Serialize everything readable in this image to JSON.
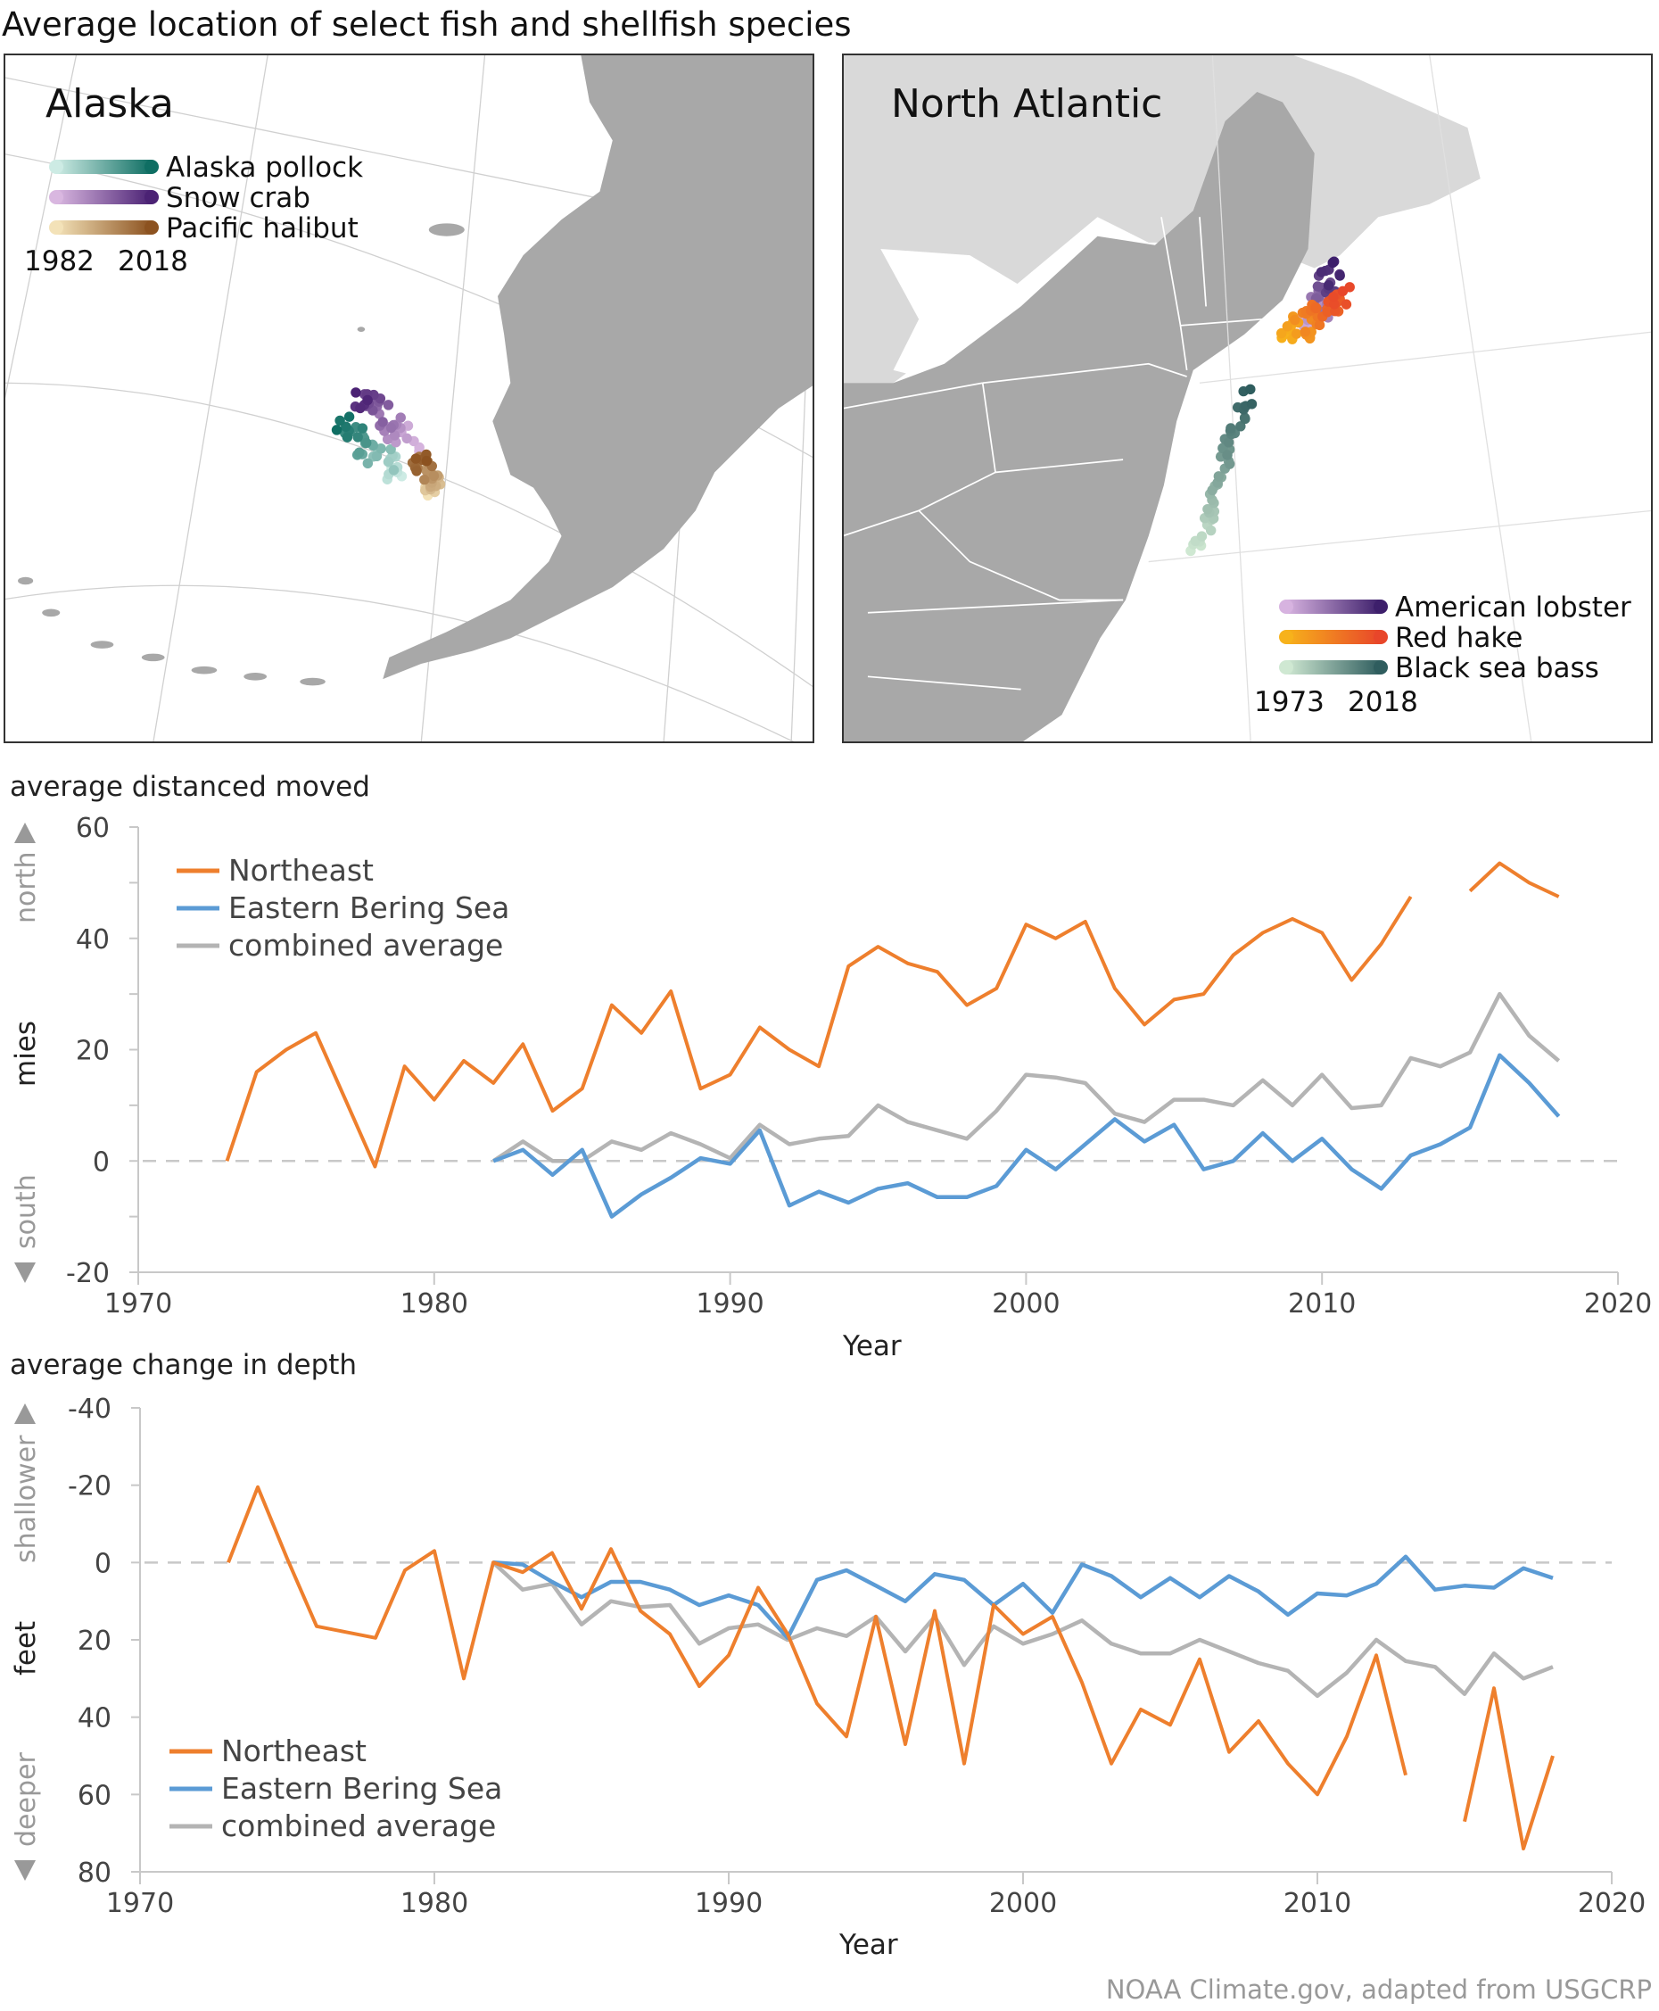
{
  "title": "Average location of select fish and shellfish species",
  "maps": {
    "alaska": {
      "title": "Alaska",
      "legend": [
        {
          "label": "Alaska pollock",
          "from": "#cdebe4",
          "to": "#0f6e63"
        },
        {
          "label": "Snow crab",
          "from": "#d9b7e0",
          "to": "#4b2274"
        },
        {
          "label": "Pacific halibut",
          "from": "#f3e2b8",
          "to": "#8c5220"
        }
      ],
      "start_year": "1982",
      "end_year": "2018"
    },
    "north_atlantic": {
      "title": "North Atlantic",
      "legend": [
        {
          "label": "American lobster",
          "from": "#d7b3e0",
          "to": "#3d1f6b"
        },
        {
          "label": "Red hake",
          "from": "#f7b21b",
          "to": "#e8462a"
        },
        {
          "label": "Black sea bass",
          "from": "#cfe8d2",
          "to": "#2f5d5e"
        }
      ],
      "start_year": "1973",
      "end_year": "2018"
    }
  },
  "colors": {
    "northeast": "#ee7f2d",
    "bering": "#5b9bd5",
    "combined": "#b4b4b4",
    "land": "#a8a8a8",
    "land_light": "#d9d9d9"
  },
  "chart_data": [
    {
      "type": "line",
      "title": "average distanced moved",
      "xlabel": "Year",
      "ylabel": "mies",
      "direction_labels": {
        "positive": "north",
        "negative": "south"
      },
      "xlim": [
        1970,
        2020
      ],
      "ylim": [
        -20,
        60
      ],
      "x_ticks": [
        1970,
        1980,
        1990,
        2000,
        2010,
        2020
      ],
      "y_ticks": [
        -20,
        0,
        20,
        40,
        60
      ],
      "reference_line": 0,
      "legend_position": "top-left",
      "series": [
        {
          "name": "Northeast",
          "key": "northeast",
          "x_start": 1973,
          "values": [
            0,
            16,
            20,
            23,
            11,
            -1,
            17,
            11,
            18,
            14,
            21,
            9,
            13,
            28,
            23,
            30.5,
            13,
            15.5,
            24,
            20,
            17,
            35,
            38.5,
            35.5,
            34,
            28,
            31,
            42.5,
            40,
            43,
            31,
            24.5,
            29,
            30,
            37,
            41,
            43.5,
            41,
            32.5,
            39,
            47.5,
            null,
            48.5,
            53.5,
            50,
            47.5
          ]
        },
        {
          "name": "Eastern Bering Sea",
          "key": "bering",
          "x_start": 1982,
          "values": [
            0,
            2,
            -2.5,
            2,
            -10,
            -6,
            -3,
            0.5,
            -0.5,
            5.5,
            -8,
            -5.5,
            -7.5,
            -5,
            -4,
            -6.5,
            -6.5,
            -4.5,
            2,
            -1.5,
            3,
            7.5,
            3.5,
            6.5,
            -1.5,
            0,
            5,
            0,
            4,
            -1.5,
            -5,
            1,
            3,
            6,
            19,
            14,
            8
          ]
        },
        {
          "name": "combined average",
          "key": "combined",
          "x_start": 1982,
          "values": [
            0,
            3.5,
            0,
            0,
            3.5,
            2,
            5,
            3,
            0.5,
            6.5,
            3,
            4,
            4.5,
            10,
            7,
            5.5,
            4,
            9,
            15.5,
            15,
            14,
            8.5,
            7,
            11,
            11,
            10,
            14.5,
            10,
            15.5,
            9.5,
            10,
            18.5,
            17,
            19.5,
            30,
            22.5,
            18
          ]
        }
      ]
    },
    {
      "type": "line",
      "title": "average change in depth",
      "xlabel": "Year",
      "ylabel": "feet",
      "direction_labels": {
        "positive": "deeper",
        "negative": "shallower"
      },
      "xlim": [
        1970,
        2020
      ],
      "ylim": [
        -40,
        80
      ],
      "y_inverted": true,
      "x_ticks": [
        1970,
        1980,
        1990,
        2000,
        2010,
        2020
      ],
      "y_ticks": [
        -40,
        -20,
        0,
        20,
        40,
        60,
        80
      ],
      "reference_line": 0,
      "legend_position": "bottom-left",
      "series": [
        {
          "name": "Northeast",
          "key": "northeast",
          "x_start": 1973,
          "values": [
            0,
            -19.5,
            -1,
            16.5,
            18,
            19.5,
            2,
            -3,
            30,
            0,
            2.5,
            -2.5,
            12,
            -3.5,
            12.5,
            18.5,
            32,
            24,
            6.5,
            18.5,
            36.5,
            45,
            14,
            47,
            12.5,
            52,
            11,
            18.5,
            14,
            31,
            52,
            38,
            42,
            25,
            49,
            41,
            52,
            60,
            45,
            24,
            55,
            null,
            67,
            32.5,
            74,
            50
          ]
        },
        {
          "name": "Eastern Bering Sea",
          "key": "bering",
          "x_start": 1982,
          "values": [
            0,
            0.5,
            5,
            9,
            5,
            5,
            7,
            11,
            8.5,
            11,
            19.5,
            4.5,
            2,
            6,
            10,
            3,
            4.5,
            11,
            5.5,
            13,
            0.5,
            3.5,
            9,
            4,
            9,
            3.5,
            7.5,
            13.5,
            8,
            8.5,
            5.5,
            -1.5,
            7,
            6,
            6.5,
            1.5,
            4
          ]
        },
        {
          "name": "combined average",
          "key": "combined",
          "x_start": 1982,
          "values": [
            0,
            7,
            5.5,
            16,
            10,
            11.5,
            11,
            21,
            17,
            16,
            20,
            17,
            19,
            14,
            23,
            14,
            26.5,
            16.5,
            21,
            18.5,
            15,
            21,
            23.5,
            23.5,
            20,
            23,
            26,
            28,
            34.5,
            28.5,
            20,
            25.5,
            27,
            34,
            23.5,
            30,
            27
          ]
        }
      ]
    }
  ],
  "credit": "NOAA Climate.gov, adapted from USGCRP"
}
